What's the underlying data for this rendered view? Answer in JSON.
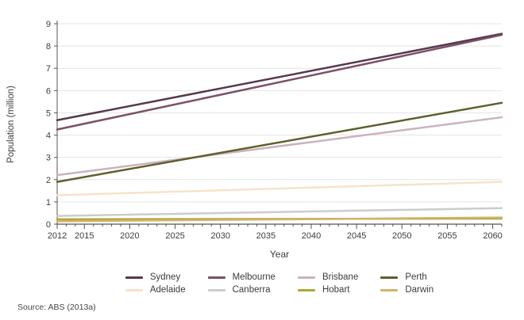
{
  "source": "Source: ABS (2013a)",
  "axes": {
    "y_title": "Population (million)",
    "x_title": "Year",
    "y_ticks": [
      "0",
      "1",
      "2",
      "3",
      "4",
      "5",
      "6",
      "7",
      "8",
      "9"
    ],
    "x_tick_labels": [
      "2012",
      "2015",
      "2020",
      "2025",
      "2030",
      "2035",
      "2040",
      "2045",
      "2050",
      "2055",
      "2060"
    ]
  },
  "colors": {
    "gridline": "#e4e4e4",
    "axis": "#555555",
    "tick_text": "#3c3c3c"
  },
  "chart_data": {
    "type": "line",
    "title": "",
    "xlabel": "Year",
    "ylabel": "Population (million)",
    "xlim": [
      2012,
      2061
    ],
    "ylim": [
      0,
      9
    ],
    "grid": "horizontal",
    "legend_position": "bottom",
    "x": [
      2012,
      2061
    ],
    "series": [
      {
        "name": "Sydney",
        "color": "#56394d",
        "values": [
          4.67,
          8.55
        ]
      },
      {
        "name": "Melbourne",
        "color": "#7d4f66",
        "values": [
          4.25,
          8.5
        ]
      },
      {
        "name": "Brisbane",
        "color": "#c9b3be",
        "values": [
          2.2,
          4.8
        ]
      },
      {
        "name": "Perth",
        "color": "#5f5f2b",
        "values": [
          1.9,
          5.45
        ]
      },
      {
        "name": "Adelaide",
        "color": "#f6e3c8",
        "values": [
          1.3,
          1.9
        ]
      },
      {
        "name": "Canberra",
        "color": "#cccccc",
        "values": [
          0.37,
          0.72
        ]
      },
      {
        "name": "Hobart",
        "color": "#a9aa39",
        "values": [
          0.22,
          0.25
        ]
      },
      {
        "name": "Darwin",
        "color": "#d3b269",
        "values": [
          0.13,
          0.3
        ]
      }
    ]
  }
}
